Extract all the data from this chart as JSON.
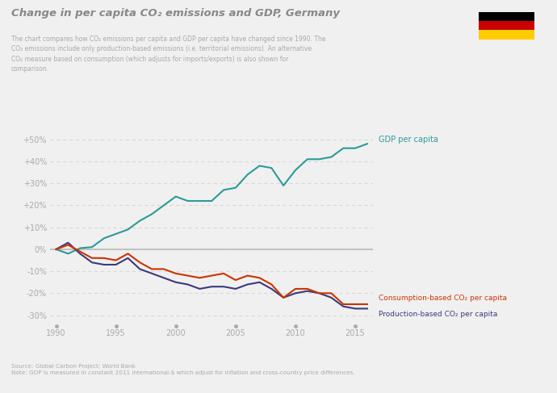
{
  "title": "Change in per capita CO₂ emissions and GDP, Germany",
  "subtitle_lines": [
    "The chart compares how CO₂ emissions per capita and GDP per capita have changed since 1990. The",
    "CO₂ emissions include only production-based emissions (i.e. territorial emissions). An alternative",
    "CO₂ measure based on consumption (which adjusts for imports/exports) is also shown for",
    "comparison."
  ],
  "source_line1": "Source: Global Carbon Project; World Bank",
  "source_line2": "Note: GDP is measured in constant 2011 international-$ which adjust for inflation and cross-country price differences.",
  "background_color": "#f0f0f0",
  "plot_bg_color": "#f0f0f0",
  "grid_color": "#d8d8d8",
  "years": [
    1990,
    1991,
    1992,
    1993,
    1994,
    1995,
    1996,
    1997,
    1998,
    1999,
    2000,
    2001,
    2002,
    2003,
    2004,
    2005,
    2006,
    2007,
    2008,
    2009,
    2010,
    2011,
    2012,
    2013,
    2014,
    2015,
    2016
  ],
  "gdp": [
    0.0,
    -0.02,
    0.005,
    0.01,
    0.05,
    0.07,
    0.09,
    0.13,
    0.16,
    0.2,
    0.24,
    0.22,
    0.22,
    0.22,
    0.27,
    0.28,
    0.34,
    0.38,
    0.37,
    0.29,
    0.36,
    0.41,
    0.41,
    0.42,
    0.46,
    0.46,
    0.48
  ],
  "production_co2": [
    0.0,
    0.03,
    -0.02,
    -0.06,
    -0.07,
    -0.07,
    -0.04,
    -0.09,
    -0.11,
    -0.13,
    -0.15,
    -0.16,
    -0.18,
    -0.17,
    -0.17,
    -0.18,
    -0.16,
    -0.15,
    -0.18,
    -0.22,
    -0.2,
    -0.19,
    -0.2,
    -0.22,
    -0.26,
    -0.27,
    -0.27
  ],
  "consumption_co2": [
    0.0,
    0.02,
    -0.01,
    -0.04,
    -0.04,
    -0.05,
    -0.02,
    -0.06,
    -0.09,
    -0.09,
    -0.11,
    -0.12,
    -0.13,
    -0.12,
    -0.11,
    -0.14,
    -0.12,
    -0.13,
    -0.16,
    -0.22,
    -0.18,
    -0.18,
    -0.2,
    -0.2,
    -0.25,
    -0.25,
    -0.25
  ],
  "gdp_color": "#2b9a9a",
  "production_co2_color": "#3a3a7c",
  "consumption_co2_color": "#cc3300",
  "gdp_label": "GDP per capita",
  "production_label": "Production-based CO₂ per capita",
  "consumption_label": "Consumption-based CO₂ per capita",
  "ylim": [
    -0.35,
    0.58
  ],
  "yticks": [
    -0.3,
    -0.2,
    -0.1,
    0.0,
    0.1,
    0.2,
    0.3,
    0.4,
    0.5
  ],
  "xticks": [
    1990,
    1995,
    2000,
    2005,
    2010,
    2015
  ],
  "flag_black": "#000000",
  "flag_red": "#cc0000",
  "flag_gold": "#ffcc00"
}
